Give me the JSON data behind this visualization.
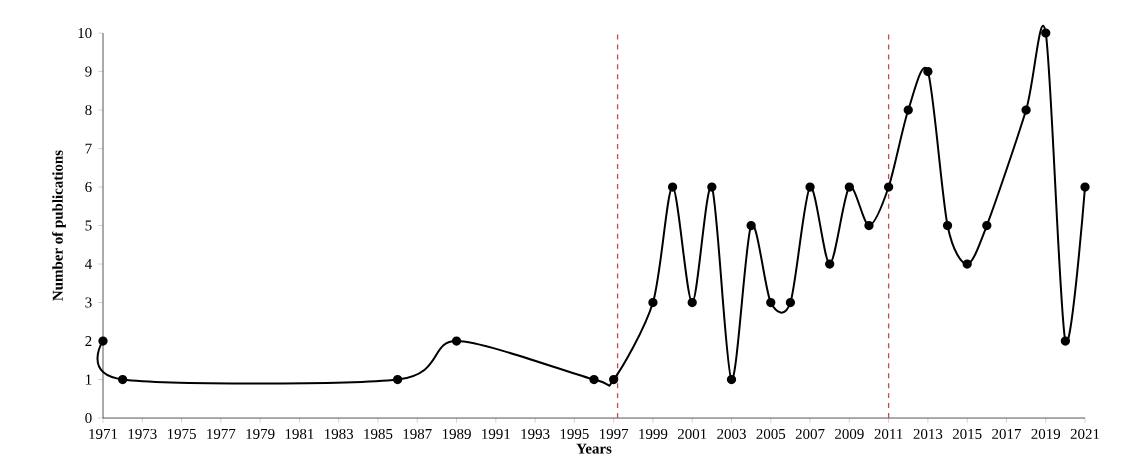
{
  "chart_data": {
    "type": "line",
    "xlabel": "Years",
    "ylabel": "Number of publications",
    "x": [
      1971,
      1972,
      1986,
      1989,
      1996,
      1997,
      1999,
      2000,
      2001,
      2002,
      2003,
      2004,
      2005,
      2006,
      2007,
      2008,
      2009,
      2010,
      2011,
      2012,
      2013,
      2014,
      2015,
      2016,
      2018,
      2019,
      2020,
      2021
    ],
    "series": [
      {
        "color": "#000000",
        "values": [
          2,
          1,
          1,
          2,
          1,
          1,
          3,
          6,
          3,
          6,
          1,
          5,
          3,
          3,
          6,
          4,
          6,
          5,
          6,
          8,
          9,
          5,
          4,
          5,
          8,
          10,
          2,
          6
        ]
      }
    ],
    "xlim": [
      1971,
      2021
    ],
    "ylim": [
      0,
      10
    ],
    "xticks": [
      1971,
      1973,
      1975,
      1977,
      1979,
      1981,
      1983,
      1985,
      1987,
      1989,
      1991,
      1993,
      1995,
      1997,
      1999,
      2001,
      2003,
      2005,
      2007,
      2009,
      2011,
      2013,
      2015,
      2017,
      2019,
      2021
    ],
    "yticks": [
      0,
      1,
      2,
      3,
      4,
      5,
      6,
      7,
      8,
      9,
      10
    ],
    "ref_lines": [
      {
        "axis": "x",
        "value": 1997.2,
        "color": "#c0504d",
        "line_style": "dashed"
      },
      {
        "axis": "x",
        "value": 2011,
        "color": "#c0504d",
        "line_style": "dashed"
      }
    ],
    "marker": "circle",
    "line_style": "solid"
  }
}
